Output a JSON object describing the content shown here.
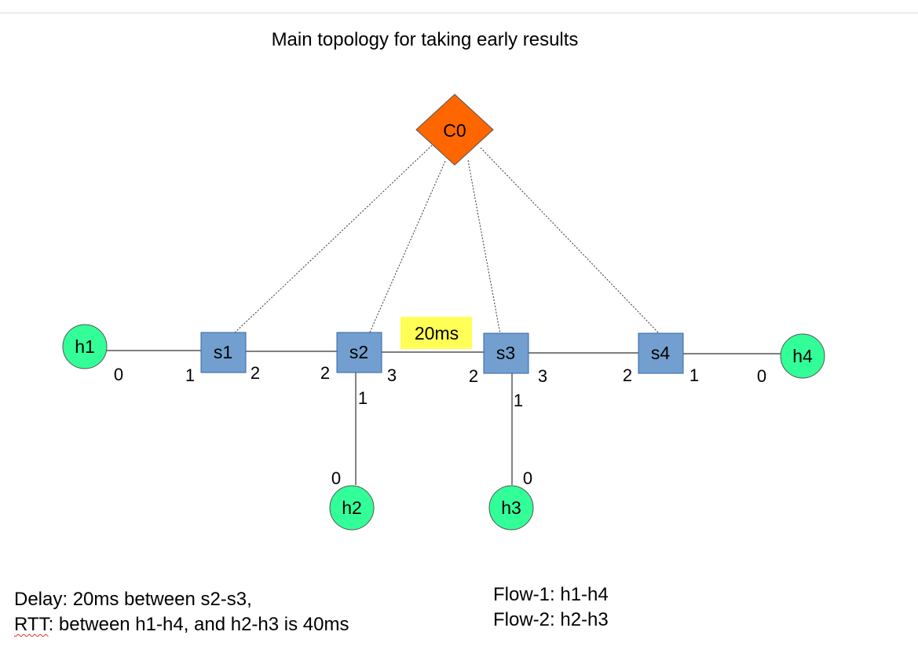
{
  "title": "Main topology for taking early results",
  "controller": {
    "label": "C0",
    "color": "#ff6600"
  },
  "colors": {
    "switch": "#729fcf",
    "host": "#33ff99",
    "delay_badge": "#ffff55"
  },
  "switches": [
    {
      "id": "s1",
      "label": "s1"
    },
    {
      "id": "s2",
      "label": "s2"
    },
    {
      "id": "s3",
      "label": "s3"
    },
    {
      "id": "s4",
      "label": "s4"
    }
  ],
  "hosts": [
    {
      "id": "h1",
      "label": "h1"
    },
    {
      "id": "h2",
      "label": "h2"
    },
    {
      "id": "h3",
      "label": "h3"
    },
    {
      "id": "h4",
      "label": "h4"
    }
  ],
  "delay_badge": "20ms",
  "ports": {
    "h1": "0",
    "s1_left": "1",
    "s1_right": "2",
    "s2_left": "2",
    "s2_right": "3",
    "s2_down": "1",
    "h2": "0",
    "s3_left": "2",
    "s3_right": "3",
    "s3_down": "1",
    "h3": "0",
    "s4_left": "2",
    "s4_right": "1",
    "h4": "0"
  },
  "notes": {
    "delay_line": "Delay: 20ms between s2-s3,",
    "rtt_word": "RTT",
    "rtt_rest": ": between h1-h4, and h2-h3 is 40ms",
    "flow1": "Flow-1: h1-h4",
    "flow2": "Flow-2: h2-h3"
  }
}
